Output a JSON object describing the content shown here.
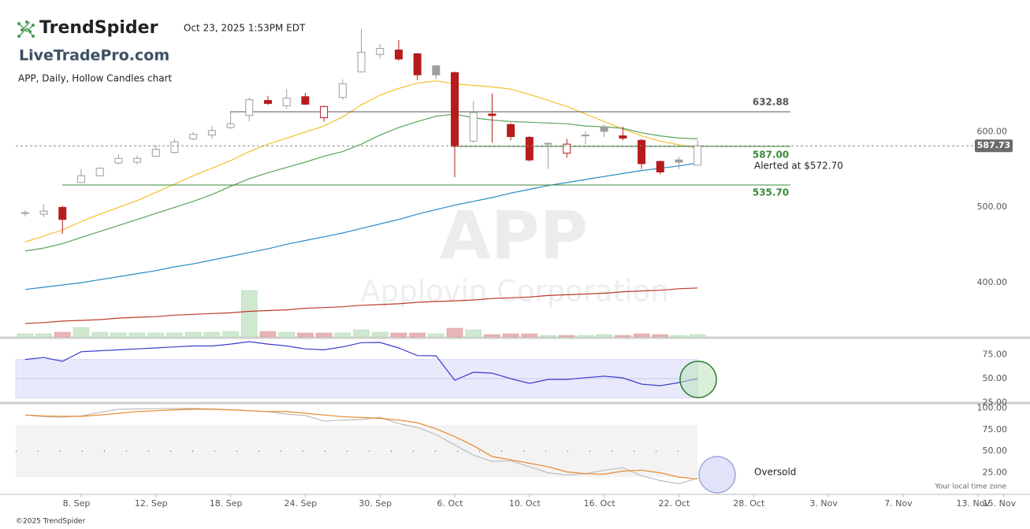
{
  "header": {
    "brand": "TrendSpider",
    "timestamp": "Oct 23, 2025 1:53PM EDT",
    "site": "LiveTradePro.com",
    "chart_label": "APP, Daily, Hollow Candles chart"
  },
  "chart_data": [
    {
      "type": "candlestick",
      "watermark": "APP",
      "watermark_name": "Applovin Corporation",
      "colors": {
        "up": "#9e9e9e",
        "down": "#b71c1c",
        "volume_up": "#cfe8cf",
        "volume_down": "#e8b4b4"
      },
      "open": [
        499,
        497,
        506,
        539,
        548,
        565,
        566,
        574,
        579,
        597,
        602,
        612,
        628,
        648,
        641,
        653,
        625,
        652,
        686,
        709,
        715,
        710,
        694,
        685,
        594,
        630,
        616,
        599,
        590,
        578,
        601,
        613,
        601,
        595,
        567,
        569,
        562
      ],
      "high": [
        502,
        510,
        508,
        557,
        559,
        577,
        575,
        589,
        597,
        606,
        614,
        633,
        652,
        654,
        663,
        658,
        641,
        676,
        743,
        723,
        728,
        711,
        695,
        686,
        647,
        657,
        618,
        601,
        592,
        597,
        607,
        616,
        613,
        597,
        568,
        573,
        595
      ],
      "low": [
        494,
        493,
        471,
        539,
        547,
        563,
        563,
        573,
        577,
        595,
        597,
        610,
        620,
        642,
        637,
        642,
        620,
        649,
        686,
        704,
        701,
        675,
        676,
        546,
        592,
        592,
        595,
        567,
        557,
        572,
        590,
        599,
        595,
        557,
        550,
        557,
        562
      ],
      "close": [
        499,
        501,
        490,
        548,
        558,
        571,
        571,
        583,
        593,
        603,
        608,
        617,
        649,
        644,
        651,
        643,
        640,
        670,
        712,
        717,
        703,
        682,
        682,
        587,
        632,
        628,
        600,
        569,
        591,
        590,
        602,
        607,
        598,
        564,
        553,
        566,
        587.73
      ],
      "volume": [
        4,
        4,
        6,
        12,
        6,
        5,
        5,
        5,
        5,
        6,
        6,
        7,
        59,
        7,
        6,
        5,
        5,
        5,
        9,
        6,
        5,
        5,
        4,
        11,
        9,
        3,
        4,
        4,
        2,
        2,
        2,
        3,
        2,
        4,
        3,
        2,
        3
      ],
      "volume_lim": [
        0,
        60
      ],
      "series": [
        {
          "color": "#f2c230",
          "values": [
            460,
            468,
            476,
            487,
            497,
            506,
            515,
            526,
            537,
            548,
            558,
            568,
            580,
            590,
            598,
            606,
            614,
            626,
            642,
            655,
            664,
            671,
            674,
            670,
            668,
            666,
            663,
            656,
            648,
            640,
            630,
            620,
            610,
            601,
            594,
            589,
            585
          ]
        },
        {
          "color": "#5aa35a",
          "values": [
            448,
            452,
            458,
            466,
            474,
            482,
            490,
            498,
            506,
            514,
            523,
            534,
            544,
            552,
            559,
            566,
            574,
            580,
            590,
            602,
            612,
            620,
            627,
            630,
            625,
            622,
            620,
            619,
            618,
            617,
            614,
            613,
            611,
            605,
            601,
            598,
            597
          ]
        },
        {
          "color": "#2a8ac8",
          "values": [
            397,
            400,
            403,
            406,
            410,
            414,
            418,
            422,
            427,
            431,
            436,
            441,
            446,
            451,
            457,
            462,
            467,
            472,
            478,
            484,
            490,
            497,
            503,
            509,
            514,
            519,
            525,
            530,
            535,
            539,
            543,
            547,
            551,
            555,
            558,
            561,
            565
          ]
        },
        {
          "color": "#c0392b",
          "values": [
            352,
            353,
            355,
            356,
            357,
            359,
            360,
            361,
            363,
            364,
            365,
            366,
            368,
            369,
            370,
            372,
            373,
            374,
            376,
            377,
            378,
            380,
            381,
            382,
            383,
            385,
            386,
            387,
            389,
            390,
            391,
            392,
            394,
            395,
            396,
            398,
            399
          ]
        }
      ],
      "levels": [
        {
          "value": 632.88,
          "label": "632.88",
          "color": "#555555"
        },
        {
          "value": 587.0,
          "label": "587.00",
          "color": "#3a8a3a"
        },
        {
          "value": 535.7,
          "label": "535.70",
          "color": "#3a8a3a"
        }
      ],
      "alert": "Alerted at $572.70",
      "last_price": {
        "value": 587.73,
        "label": "587.73"
      },
      "ylim": [
        334,
        750
      ],
      "yticks": [
        {
          "value": 400,
          "label": "400.00"
        },
        {
          "value": 500,
          "label": "500.00"
        },
        {
          "value": 600,
          "label": "600.00"
        }
      ]
    },
    {
      "type": "line",
      "series": [
        {
          "color": "#3b3bcc",
          "values": [
            70,
            72,
            68,
            78,
            79,
            80,
            81,
            82,
            83,
            84,
            84,
            86,
            88.5,
            86,
            84,
            81,
            80,
            83,
            87.5,
            87.7,
            82,
            74,
            73.8,
            48.4,
            56.6,
            55.7,
            50,
            45.1,
            49.2,
            49.2,
            51,
            52.5,
            50.8,
            44.3,
            42.6,
            45.9,
            50
          ]
        }
      ],
      "band": [
        30,
        70
      ],
      "midline": 50,
      "ylim": [
        25,
        90
      ],
      "yticks": [
        {
          "value": 75,
          "label": "75.00"
        },
        {
          "value": 50,
          "label": "50.00"
        },
        {
          "value": 25,
          "label": "25.00"
        }
      ]
    },
    {
      "type": "line",
      "series": [
        {
          "color": "#bdbdbd",
          "values": [
            92,
            90,
            89.4,
            91,
            95,
            98.6,
            99,
            99.3,
            99.5,
            99.5,
            99,
            98,
            97,
            95.9,
            93,
            91.3,
            85,
            86,
            86.7,
            89.4,
            82,
            77.5,
            69.3,
            57.3,
            45.4,
            38.1,
            39,
            32,
            25,
            22.5,
            24,
            28,
            30.7,
            21.6,
            16,
            12.4,
            18.8
          ]
        },
        {
          "color": "#e8892b",
          "values": [
            92,
            91,
            90.5,
            90.4,
            92,
            94,
            96,
            97,
            98,
            98.6,
            98.6,
            98,
            97,
            96,
            95.9,
            94,
            92,
            90,
            89,
            88,
            86,
            83,
            76,
            67,
            56.4,
            44,
            40,
            36,
            32,
            26,
            24,
            23.4,
            27,
            28,
            25,
            20,
            18
          ]
        }
      ],
      "band": [
        20,
        80
      ],
      "midline": 50,
      "annotation": "Oversold",
      "timezone_note": "Your local time zone",
      "ylim": [
        0,
        104
      ],
      "yticks": [
        {
          "value": 100,
          "label": "100.00"
        },
        {
          "value": 75,
          "label": "75.00"
        },
        {
          "value": 50,
          "label": "50.00"
        },
        {
          "value": 25,
          "label": "25.00"
        }
      ],
      "xlim": [
        -0.5,
        53.5
      ],
      "xticks": [
        {
          "value": 3,
          "label": "8. Sep"
        },
        {
          "value": 7,
          "label": "12. Sep"
        },
        {
          "value": 11,
          "label": "18. Sep"
        },
        {
          "value": 15,
          "label": "24. Sep"
        },
        {
          "value": 19,
          "label": "30. Sep"
        },
        {
          "value": 23,
          "label": "6. Oct"
        },
        {
          "value": 27,
          "label": "10. Oct"
        },
        {
          "value": 31,
          "label": "16. Oct"
        },
        {
          "value": 35,
          "label": "22. Oct"
        },
        {
          "value": 39,
          "label": "28. Oct"
        },
        {
          "value": 43,
          "label": "3. Nov"
        },
        {
          "value": 47,
          "label": "7. Nov"
        },
        {
          "value": 51,
          "label": "13. Nov"
        },
        {
          "value": 52.4,
          "label": "15. Nov"
        }
      ]
    }
  ],
  "footer": {
    "copyright": "©2025 TrendSpider"
  }
}
